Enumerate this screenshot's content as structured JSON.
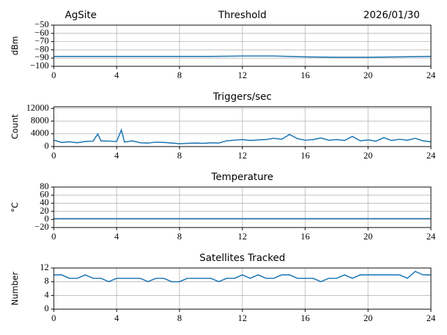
{
  "header": {
    "site": "AgSite",
    "date": "2026/01/30"
  },
  "chart_data": [
    {
      "type": "line",
      "title": "Threshold",
      "y_label": "dBm",
      "color": "#1f77b4",
      "grid": true,
      "x": [
        0,
        2,
        4,
        6,
        8,
        10,
        12,
        14,
        16,
        18,
        20,
        22,
        24
      ],
      "values": [
        -88,
        -88,
        -88,
        -88,
        -88,
        -88,
        -87.5,
        -87.5,
        -88.5,
        -89,
        -89,
        -88.5,
        -88
      ],
      "xlim": [
        0,
        24
      ],
      "xticks": [
        0,
        4,
        8,
        12,
        16,
        20,
        24
      ],
      "ylim": [
        -100,
        -50
      ],
      "yticks": [
        {
          "value": -100,
          "label": "−100"
        },
        {
          "value": -90,
          "label": "−90"
        },
        {
          "value": -80,
          "label": "−80"
        },
        {
          "value": -70,
          "label": "−70"
        },
        {
          "value": -60,
          "label": "−60"
        },
        {
          "value": -50,
          "label": "−50"
        }
      ]
    },
    {
      "type": "line",
      "title": "Triggers/sec",
      "y_label": "Count",
      "color": "#1f77b4",
      "grid": true,
      "x": [
        0,
        0.5,
        1,
        1.5,
        2,
        2.5,
        2.8,
        3,
        3.5,
        4,
        4.3,
        4.5,
        5,
        5.5,
        6,
        6.5,
        7,
        7.5,
        8,
        8.5,
        9,
        9.5,
        10,
        10.5,
        11,
        11.5,
        12,
        12.5,
        13,
        13.5,
        14,
        14.5,
        15,
        15.5,
        16,
        16.5,
        17,
        17.5,
        18,
        18.5,
        19,
        19.5,
        20,
        20.5,
        21,
        21.5,
        22,
        22.5,
        23,
        23.5,
        24
      ],
      "values": [
        2000,
        1300,
        1500,
        1200,
        1600,
        1700,
        4000,
        1800,
        1700,
        1600,
        5200,
        1400,
        1800,
        1200,
        1100,
        1400,
        1300,
        1100,
        900,
        1000,
        1100,
        1000,
        1200,
        1100,
        1800,
        2000,
        2200,
        1900,
        2100,
        2200,
        2600,
        2300,
        3800,
        2500,
        2000,
        2200,
        2700,
        2000,
        2200,
        1900,
        3200,
        1800,
        2100,
        1700,
        2800,
        1900,
        2300,
        2000,
        2600,
        1800,
        1500
      ],
      "xlim": [
        0,
        24
      ],
      "xticks": [
        0,
        4,
        8,
        12,
        16,
        20,
        24
      ],
      "ylim": [
        0,
        12500
      ],
      "yticks": [
        0,
        4000,
        8000,
        12000
      ]
    },
    {
      "type": "line",
      "title": "Temperature",
      "y_label": "°C",
      "color": "#1f77b4",
      "grid": true,
      "x": [
        0,
        24
      ],
      "values": [
        2,
        2
      ],
      "xlim": [
        0,
        24
      ],
      "xticks": [
        0,
        4,
        8,
        12,
        16,
        20,
        24
      ],
      "ylim": [
        -20,
        80
      ],
      "yticks": [
        {
          "value": -20,
          "label": "−20"
        },
        0,
        20,
        40,
        60,
        80
      ]
    },
    {
      "type": "line",
      "title": "Satellites Tracked",
      "y_label": "Number",
      "color": "#1f77b4",
      "grid": true,
      "x": [
        0,
        0.5,
        1,
        1.5,
        2,
        2.5,
        3,
        3.5,
        4,
        4.5,
        5,
        5.5,
        6,
        6.5,
        7,
        7.5,
        8,
        8.5,
        9,
        9.5,
        10,
        10.5,
        11,
        11.5,
        12,
        12.5,
        13,
        13.5,
        14,
        14.5,
        15,
        15.5,
        16,
        16.5,
        17,
        17.5,
        18,
        18.5,
        19,
        19.5,
        20,
        20.5,
        21,
        21.5,
        22,
        22.5,
        23,
        23.5,
        24
      ],
      "values": [
        10,
        10,
        9,
        9,
        10,
        9,
        9,
        8,
        9,
        9,
        9,
        9,
        8,
        9,
        9,
        8,
        8,
        9,
        9,
        9,
        9,
        8,
        9,
        9,
        10,
        9,
        10,
        9,
        9,
        10,
        10,
        9,
        9,
        9,
        8,
        9,
        9,
        10,
        9,
        10,
        10,
        10,
        10,
        10,
        10,
        9,
        11,
        10,
        10
      ],
      "xlim": [
        0,
        24
      ],
      "xticks": [
        0,
        4,
        8,
        12,
        16,
        20,
        24
      ],
      "ylim": [
        0,
        12
      ],
      "yticks": [
        0,
        4,
        8,
        12
      ]
    }
  ]
}
